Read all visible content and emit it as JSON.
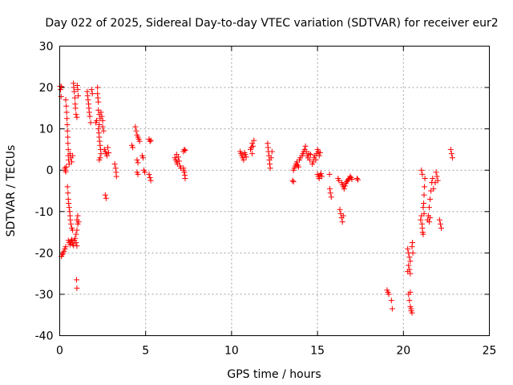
{
  "chart_data": {
    "type": "scatter",
    "title": "Day 022 of 2025, Sidereal Day-to-day VTEC variation (SDTVAR) for receiver eur2",
    "xlabel": "GPS time / hours",
    "ylabel": "SDTVAR / TECUs",
    "xlim": [
      0,
      25
    ],
    "ylim": [
      -40,
      30
    ],
    "xticks": [
      0,
      5,
      10,
      15,
      20,
      25
    ],
    "yticks": [
      -40,
      -30,
      -20,
      -10,
      0,
      10,
      20,
      30
    ],
    "xtick_labels": [
      "0",
      "5",
      "10",
      "15",
      "20",
      "25"
    ],
    "ytick_labels": [
      "-40",
      "-30",
      "-20",
      "-10",
      "0",
      "10",
      "20",
      "30"
    ],
    "grid": true,
    "marker": "+",
    "color": "#ff0000",
    "series": [
      {
        "name": "SDTVAR",
        "points": [
          [
            0.02,
            20.3
          ],
          [
            0.05,
            19.5
          ],
          [
            0.08,
            17.8
          ],
          [
            0.1,
            20.2
          ],
          [
            0.1,
            -20.8
          ],
          [
            0.15,
            -20.4
          ],
          [
            0.2,
            -20.0
          ],
          [
            0.25,
            -19.6
          ],
          [
            0.3,
            -19.0
          ],
          [
            0.35,
            -18.5
          ],
          [
            0.3,
            0.5
          ],
          [
            0.32,
            0.0
          ],
          [
            0.35,
            -0.4
          ],
          [
            0.38,
            0.8
          ],
          [
            0.35,
            17.0
          ],
          [
            0.38,
            15.5
          ],
          [
            0.4,
            14.0
          ],
          [
            0.42,
            12.5
          ],
          [
            0.44,
            11.0
          ],
          [
            0.45,
            9.5
          ],
          [
            0.47,
            8.0
          ],
          [
            0.48,
            6.5
          ],
          [
            0.5,
            5.0
          ],
          [
            0.5,
            3.5
          ],
          [
            0.52,
            2.5
          ],
          [
            0.55,
            1.5
          ],
          [
            0.45,
            -4.0
          ],
          [
            0.48,
            -5.5
          ],
          [
            0.5,
            -7.0
          ],
          [
            0.52,
            -8.0
          ],
          [
            0.55,
            -9.0
          ],
          [
            0.58,
            -10.0
          ],
          [
            0.6,
            -11.0
          ],
          [
            0.62,
            -12.0
          ],
          [
            0.65,
            -13.0
          ],
          [
            0.7,
            -14.0
          ],
          [
            0.75,
            -14.5
          ],
          [
            0.5,
            -17.0
          ],
          [
            0.55,
            -17.5
          ],
          [
            0.6,
            -18.0
          ],
          [
            0.65,
            -17.2
          ],
          [
            0.7,
            -16.8
          ],
          [
            0.75,
            -17.8
          ],
          [
            0.8,
            -18.2
          ],
          [
            0.85,
            -17.0
          ],
          [
            0.9,
            -16.5
          ],
          [
            0.95,
            -15.5
          ],
          [
            1.0,
            -14.5
          ],
          [
            1.05,
            -13.0
          ],
          [
            1.0,
            -12.0
          ],
          [
            1.05,
            -11.0
          ],
          [
            1.1,
            -12.5
          ],
          [
            0.95,
            -17.5
          ],
          [
            1.0,
            -18.3
          ],
          [
            0.6,
            4.0
          ],
          [
            0.65,
            3.0
          ],
          [
            0.7,
            2.0
          ],
          [
            0.75,
            3.5
          ],
          [
            0.8,
            21.0
          ],
          [
            0.82,
            20.0
          ],
          [
            0.85,
            19.0
          ],
          [
            0.88,
            17.5
          ],
          [
            0.9,
            16.0
          ],
          [
            0.92,
            15.0
          ],
          [
            0.95,
            13.5
          ],
          [
            1.0,
            12.8
          ],
          [
            1.02,
            20.5
          ],
          [
            1.05,
            19.5
          ],
          [
            1.08,
            18.0
          ],
          [
            0.98,
            -26.5
          ],
          [
            1.0,
            -28.5
          ],
          [
            1.6,
            19.0
          ],
          [
            1.62,
            18.0
          ],
          [
            1.65,
            17.0
          ],
          [
            1.68,
            16.0
          ],
          [
            1.7,
            15.0
          ],
          [
            1.72,
            14.0
          ],
          [
            1.75,
            13.0
          ],
          [
            1.8,
            11.5
          ],
          [
            1.85,
            19.5
          ],
          [
            1.9,
            18.5
          ],
          [
            2.1,
            11.5
          ],
          [
            2.15,
            12.0
          ],
          [
            2.2,
            18.5
          ],
          [
            2.22,
            17.5
          ],
          [
            2.25,
            16.5
          ],
          [
            2.2,
            20.0
          ],
          [
            2.25,
            14.5
          ],
          [
            2.3,
            13.5
          ],
          [
            2.35,
            12.5
          ],
          [
            2.3,
            11.0
          ],
          [
            2.25,
            10.0
          ],
          [
            2.28,
            9.0
          ],
          [
            2.3,
            8.0
          ],
          [
            2.32,
            7.0
          ],
          [
            2.35,
            6.0
          ],
          [
            2.38,
            5.0
          ],
          [
            2.4,
            4.0
          ],
          [
            2.35,
            3.0
          ],
          [
            2.3,
            2.5
          ],
          [
            2.4,
            14.0
          ],
          [
            2.45,
            13.0
          ],
          [
            2.5,
            12.0
          ],
          [
            2.5,
            10.5
          ],
          [
            2.55,
            9.5
          ],
          [
            2.6,
            5.0
          ],
          [
            2.65,
            4.5
          ],
          [
            2.7,
            4.0
          ],
          [
            2.75,
            3.5
          ],
          [
            2.8,
            5.5
          ],
          [
            2.85,
            4.2
          ],
          [
            2.65,
            -6.0
          ],
          [
            2.7,
            -6.8
          ],
          [
            3.2,
            1.5
          ],
          [
            3.25,
            0.5
          ],
          [
            3.28,
            -0.5
          ],
          [
            3.3,
            -1.5
          ],
          [
            4.2,
            6.0
          ],
          [
            4.25,
            5.5
          ],
          [
            4.4,
            10.5
          ],
          [
            4.45,
            9.5
          ],
          [
            4.5,
            8.5
          ],
          [
            4.55,
            8.0
          ],
          [
            4.6,
            7.5
          ],
          [
            4.65,
            7.0
          ],
          [
            4.5,
            2.5
          ],
          [
            4.55,
            1.8
          ],
          [
            4.5,
            -0.5
          ],
          [
            4.55,
            -1.0
          ],
          [
            4.8,
            3.5
          ],
          [
            4.85,
            3.0
          ],
          [
            4.9,
            0.0
          ],
          [
            4.95,
            -0.5
          ],
          [
            5.2,
            7.5
          ],
          [
            5.25,
            7.0
          ],
          [
            5.3,
            7.2
          ],
          [
            5.2,
            -1.0
          ],
          [
            5.25,
            -1.8
          ],
          [
            5.3,
            -2.5
          ],
          [
            6.7,
            3.0
          ],
          [
            6.75,
            2.5
          ],
          [
            6.8,
            2.0
          ],
          [
            6.85,
            1.5
          ],
          [
            6.9,
            3.2
          ],
          [
            6.95,
            2.2
          ],
          [
            7.0,
            1.0
          ],
          [
            7.05,
            0.5
          ],
          [
            6.8,
            3.8
          ],
          [
            7.2,
            0.5
          ],
          [
            7.22,
            0.0
          ],
          [
            7.25,
            -0.5
          ],
          [
            7.28,
            -1.2
          ],
          [
            7.3,
            -2.0
          ],
          [
            7.2,
            4.5
          ],
          [
            7.25,
            5.0
          ],
          [
            7.3,
            4.8
          ],
          [
            10.5,
            4.5
          ],
          [
            10.55,
            4.0
          ],
          [
            10.6,
            3.5
          ],
          [
            10.65,
            3.0
          ],
          [
            10.7,
            2.5
          ],
          [
            10.75,
            4.2
          ],
          [
            10.8,
            3.8
          ],
          [
            10.85,
            3.2
          ],
          [
            11.1,
            5.0
          ],
          [
            11.15,
            5.5
          ],
          [
            11.2,
            6.5
          ],
          [
            11.25,
            5.8
          ],
          [
            11.3,
            7.2
          ],
          [
            11.2,
            4.0
          ],
          [
            12.1,
            6.5
          ],
          [
            12.12,
            5.5
          ],
          [
            12.15,
            4.5
          ],
          [
            12.18,
            3.5
          ],
          [
            12.2,
            2.5
          ],
          [
            12.22,
            1.5
          ],
          [
            12.25,
            0.5
          ],
          [
            12.3,
            3.0
          ],
          [
            12.35,
            4.5
          ],
          [
            13.55,
            -2.5
          ],
          [
            13.6,
            -2.8
          ],
          [
            13.6,
            0.0
          ],
          [
            13.65,
            0.5
          ],
          [
            13.7,
            1.0
          ],
          [
            13.75,
            1.5
          ],
          [
            13.8,
            2.0
          ],
          [
            13.85,
            1.2
          ],
          [
            13.9,
            0.8
          ],
          [
            13.95,
            2.5
          ],
          [
            14.0,
            3.0
          ],
          [
            14.1,
            3.5
          ],
          [
            14.15,
            4.0
          ],
          [
            14.2,
            4.5
          ],
          [
            14.25,
            5.0
          ],
          [
            14.3,
            5.8
          ],
          [
            14.35,
            4.5
          ],
          [
            14.4,
            3.5
          ],
          [
            14.45,
            3.0
          ],
          [
            14.5,
            4.0
          ],
          [
            14.55,
            2.5
          ],
          [
            14.6,
            3.8
          ],
          [
            14.7,
            1.5
          ],
          [
            14.75,
            2.0
          ],
          [
            14.8,
            3.0
          ],
          [
            14.85,
            3.5
          ],
          [
            14.9,
            2.5
          ],
          [
            14.95,
            4.0
          ],
          [
            15.0,
            5.0
          ],
          [
            15.05,
            4.5
          ],
          [
            15.1,
            3.5
          ],
          [
            15.15,
            4.2
          ],
          [
            15.0,
            -1.0
          ],
          [
            15.05,
            -1.5
          ],
          [
            15.1,
            -2.0
          ],
          [
            15.15,
            -1.2
          ],
          [
            15.2,
            -0.8
          ],
          [
            15.25,
            -1.5
          ],
          [
            15.7,
            -1.0
          ],
          [
            15.72,
            -4.5
          ],
          [
            15.75,
            -5.5
          ],
          [
            15.8,
            -6.5
          ],
          [
            16.2,
            -2.0
          ],
          [
            16.25,
            -2.5
          ],
          [
            16.3,
            -9.5
          ],
          [
            16.35,
            -10.5
          ],
          [
            16.4,
            -11.5
          ],
          [
            16.45,
            -12.5
          ],
          [
            16.5,
            -11.0
          ],
          [
            16.4,
            -3.0
          ],
          [
            16.45,
            -3.5
          ],
          [
            16.5,
            -4.0
          ],
          [
            16.55,
            -4.5
          ],
          [
            16.6,
            -3.8
          ],
          [
            16.65,
            -3.2
          ],
          [
            16.7,
            -2.8
          ],
          [
            16.75,
            -2.5
          ],
          [
            16.8,
            -2.2
          ],
          [
            16.85,
            -2.0
          ],
          [
            16.9,
            -1.5
          ],
          [
            16.95,
            -1.8
          ],
          [
            17.0,
            -2.2
          ],
          [
            17.3,
            -2.0
          ],
          [
            17.35,
            -2.3
          ],
          [
            19.05,
            -29.0
          ],
          [
            19.1,
            -29.5
          ],
          [
            19.15,
            -30.0
          ],
          [
            19.3,
            -31.5
          ],
          [
            19.35,
            -33.5
          ],
          [
            20.25,
            -19.0
          ],
          [
            20.3,
            -20.0
          ],
          [
            20.35,
            -21.0
          ],
          [
            20.4,
            -22.0
          ],
          [
            20.3,
            -23.0
          ],
          [
            20.35,
            -24.0
          ],
          [
            20.4,
            -25.0
          ],
          [
            20.25,
            -24.5
          ],
          [
            20.3,
            -30.0
          ],
          [
            20.35,
            -31.5
          ],
          [
            20.4,
            -33.0
          ],
          [
            20.45,
            -34.0
          ],
          [
            20.5,
            -34.5
          ],
          [
            20.4,
            -29.5
          ],
          [
            20.45,
            -33.5
          ],
          [
            20.5,
            -18.5
          ],
          [
            20.52,
            -17.5
          ],
          [
            20.55,
            -20.0
          ],
          [
            21.0,
            -12.0
          ],
          [
            21.05,
            -11.0
          ],
          [
            21.08,
            -13.0
          ],
          [
            21.1,
            -14.0
          ],
          [
            21.12,
            -15.0
          ],
          [
            21.15,
            -9.0
          ],
          [
            21.18,
            -8.0
          ],
          [
            21.2,
            -6.0
          ],
          [
            21.22,
            -4.0
          ],
          [
            21.25,
            -2.0
          ],
          [
            21.05,
            0.0
          ],
          [
            21.1,
            -1.0
          ],
          [
            21.15,
            -15.5
          ],
          [
            21.2,
            -10.5
          ],
          [
            21.4,
            -12.0
          ],
          [
            21.45,
            -11.0
          ],
          [
            21.5,
            -9.0
          ],
          [
            21.55,
            -7.0
          ],
          [
            21.6,
            -5.0
          ],
          [
            21.65,
            -3.0
          ],
          [
            21.7,
            -2.0
          ],
          [
            21.75,
            -4.5
          ],
          [
            21.5,
            -12.5
          ],
          [
            21.55,
            -11.5
          ],
          [
            21.9,
            -0.5
          ],
          [
            21.95,
            -1.5
          ],
          [
            22.0,
            -2.5
          ],
          [
            21.85,
            -3.0
          ],
          [
            22.1,
            -12.0
          ],
          [
            22.15,
            -13.0
          ],
          [
            22.2,
            -14.0
          ],
          [
            22.75,
            5.0
          ],
          [
            22.8,
            4.0
          ],
          [
            22.85,
            3.0
          ]
        ]
      }
    ]
  }
}
